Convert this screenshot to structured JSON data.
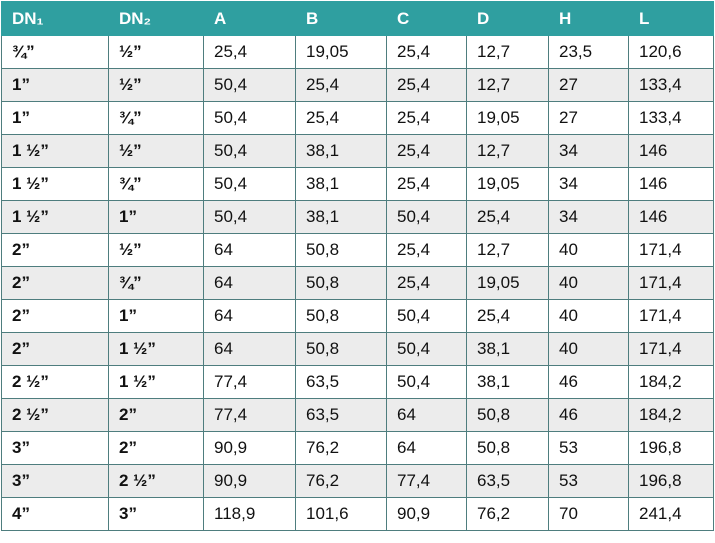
{
  "table": {
    "header": [
      "DN₁",
      "DN₂",
      "A",
      "B",
      "C",
      "D",
      "H",
      "L"
    ],
    "rows": [
      [
        "¾”",
        "½”",
        "25,4",
        "19,05",
        "25,4",
        "12,7",
        "23,5",
        "120,6"
      ],
      [
        "1”",
        "½”",
        "50,4",
        "25,4",
        "25,4",
        "12,7",
        "27",
        "133,4"
      ],
      [
        "1”",
        "¾”",
        "50,4",
        "25,4",
        "25,4",
        "19,05",
        "27",
        "133,4"
      ],
      [
        "1 ½”",
        "½”",
        "50,4",
        "38,1",
        "25,4",
        "12,7",
        "34",
        "146"
      ],
      [
        "1 ½”",
        "¾”",
        "50,4",
        "38,1",
        "25,4",
        "19,05",
        "34",
        "146"
      ],
      [
        "1 ½”",
        "1”",
        "50,4",
        "38,1",
        "50,4",
        "25,4",
        "34",
        "146"
      ],
      [
        "2”",
        "½”",
        "64",
        "50,8",
        "25,4",
        "12,7",
        "40",
        "171,4"
      ],
      [
        "2”",
        "¾”",
        "64",
        "50,8",
        "25,4",
        "19,05",
        "40",
        "171,4"
      ],
      [
        "2”",
        "1”",
        "64",
        "50,8",
        "50,4",
        "25,4",
        "40",
        "171,4"
      ],
      [
        "2”",
        "1 ½”",
        "64",
        "50,8",
        "50,4",
        "38,1",
        "40",
        "171,4"
      ],
      [
        "2 ½”",
        "1 ½”",
        "77,4",
        "63,5",
        "50,4",
        "38,1",
        "46",
        "184,2"
      ],
      [
        "2 ½”",
        "2”",
        "77,4",
        "63,5",
        "64",
        "50,8",
        "46",
        "184,2"
      ],
      [
        "3”",
        "2”",
        "90,9",
        "76,2",
        "64",
        "50,8",
        "53",
        "196,8"
      ],
      [
        "3”",
        "2 ½”",
        "90,9",
        "76,2",
        "77,4",
        "63,5",
        "53",
        "196,8"
      ],
      [
        "4”",
        "3”",
        "118,9",
        "101,6",
        "90,9",
        "76,2",
        "70",
        "241,4"
      ]
    ]
  }
}
